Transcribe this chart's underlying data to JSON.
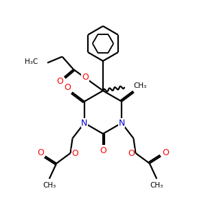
{
  "bg_color": "#ffffff",
  "bond_color": "#000000",
  "N_color": "#0000cc",
  "O_color": "#ff0000",
  "text_color": "#000000",
  "lw": 1.6,
  "figsize": [
    3.0,
    3.0
  ],
  "dpi": 100,
  "xlim": [
    0,
    10
  ],
  "ylim": [
    0,
    10
  ]
}
